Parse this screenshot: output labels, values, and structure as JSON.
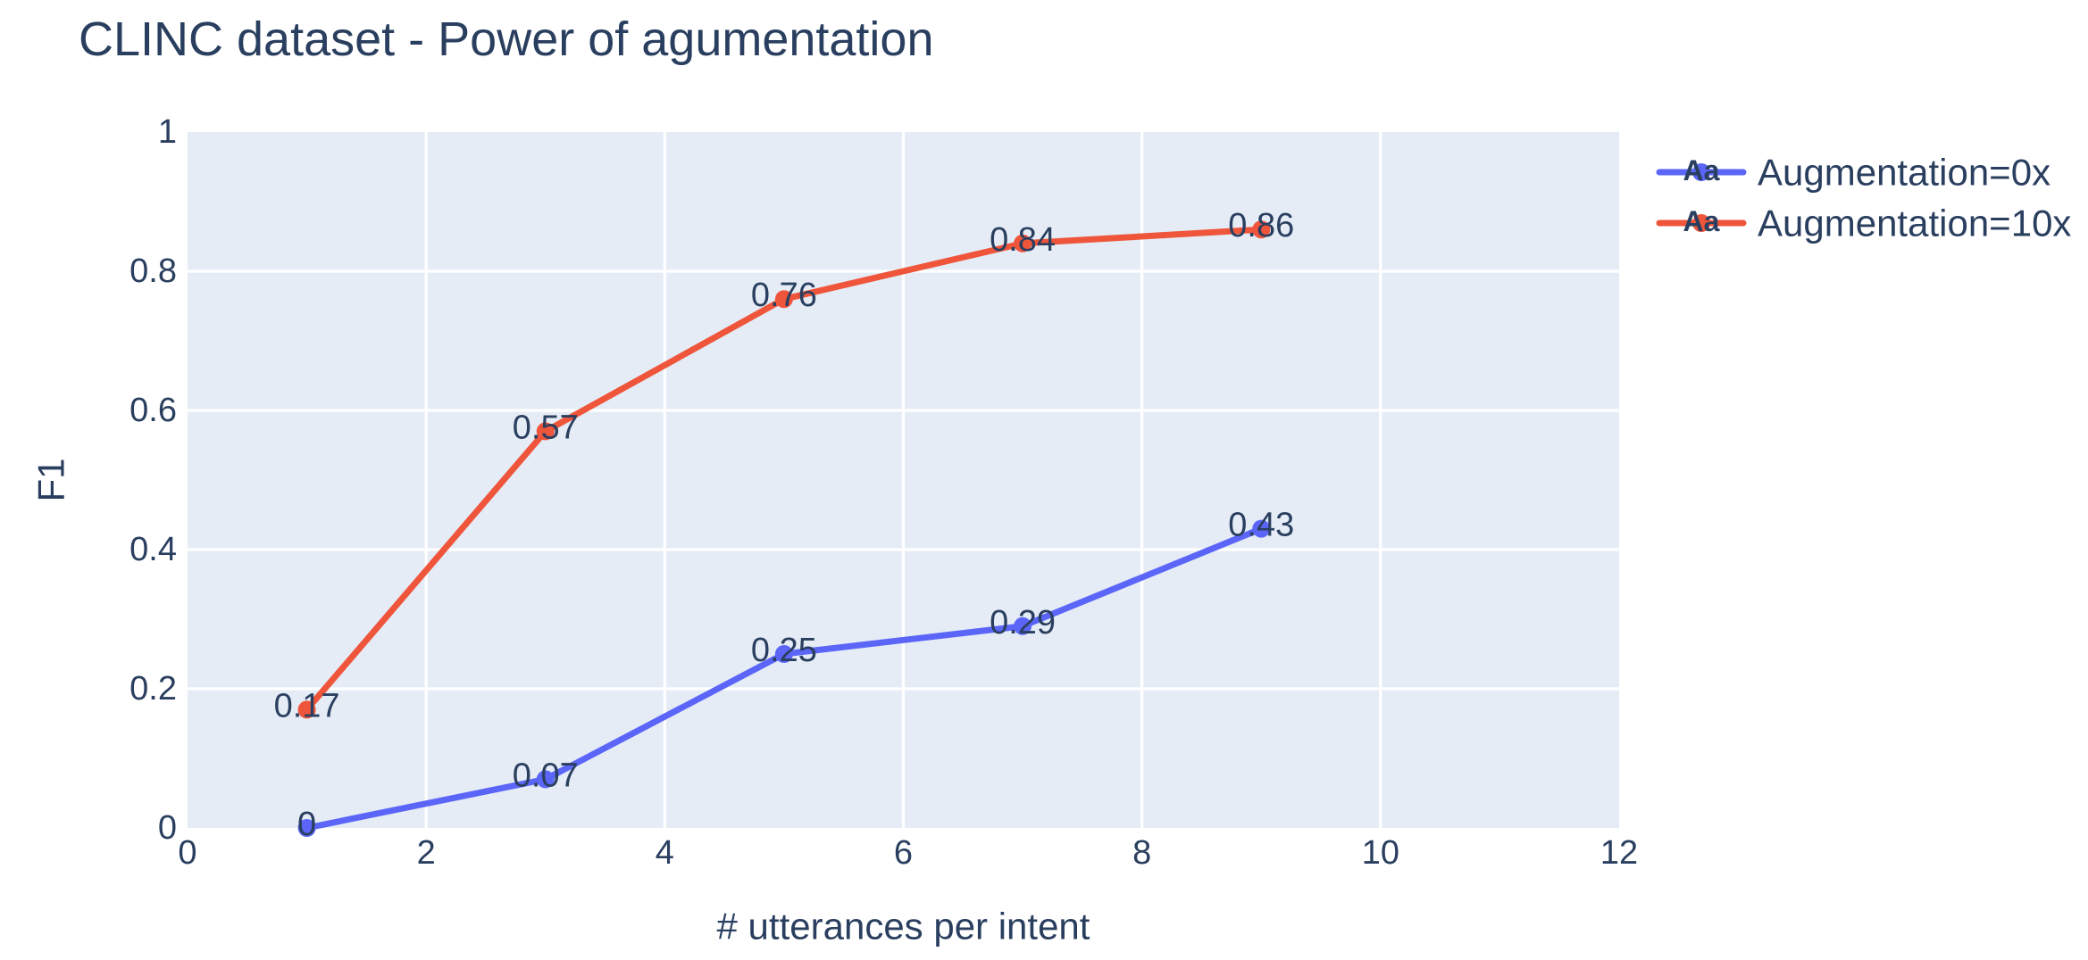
{
  "title": "CLINC dataset - Power of agumentation",
  "colors": {
    "text": "#2a3f5f",
    "plot_background": "#e5ecf6",
    "gridline": "#ffffff",
    "series_blue": "#5b66f9",
    "series_red": "#ef553b"
  },
  "legend": {
    "sample_text": "Aa",
    "items": [
      {
        "label": "Augmentation=0x",
        "color": "#5b66f9"
      },
      {
        "label": "Augmentation=10x",
        "color": "#ef553b"
      }
    ]
  },
  "chart_data": {
    "type": "line",
    "title": "CLINC dataset - Power of agumentation",
    "xlabel": "# utterances per intent",
    "ylabel": "F1",
    "xlim": [
      0,
      12
    ],
    "ylim": [
      0,
      1
    ],
    "grid": true,
    "legend_position": "top-right-outside",
    "x": [
      1,
      3,
      5,
      7,
      9
    ],
    "series": [
      {
        "name": "Augmentation=0x",
        "color": "#5b66f9",
        "values": [
          0,
          0.07,
          0.25,
          0.29,
          0.43
        ],
        "labels": [
          "0",
          "0.07",
          "0.25",
          "0.29",
          "0.43"
        ]
      },
      {
        "name": "Augmentation=10x",
        "color": "#ef553b",
        "values": [
          0.17,
          0.57,
          0.76,
          0.84,
          0.86
        ],
        "labels": [
          "0.17",
          "0.57",
          "0.76",
          "0.84",
          "0.86"
        ]
      }
    ],
    "x_ticks": [
      0,
      2,
      4,
      6,
      8,
      10,
      12
    ],
    "x_tick_labels": [
      "0",
      "2",
      "4",
      "6",
      "8",
      "10",
      "12"
    ],
    "y_ticks": [
      0,
      0.2,
      0.4,
      0.6,
      0.8,
      1
    ],
    "y_tick_labels": [
      "0",
      "0.2",
      "0.4",
      "0.6",
      "0.8",
      "1"
    ]
  }
}
